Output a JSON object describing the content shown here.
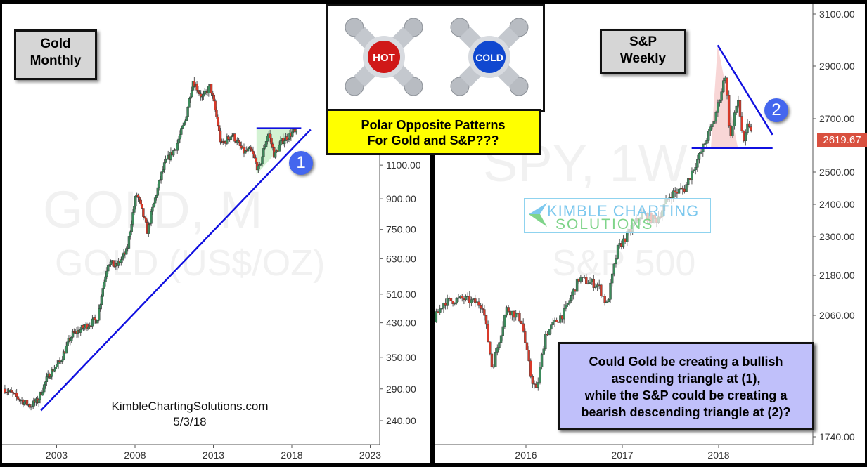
{
  "chart_data": [
    {
      "type": "candlestick",
      "title": "Gold Monthly",
      "watermark": [
        "GOLD, M",
        "GOLD (US$/OZ)"
      ],
      "y_scale": "log",
      "ylim": [
        220,
        2000
      ],
      "y_ticks": [
        "1100.00",
        "900.00",
        "750.00",
        "630.00",
        "510.00",
        "430.00",
        "350.00",
        "290.00",
        "240.00"
      ],
      "y_tick_values": [
        1100,
        900,
        750,
        630,
        510,
        430,
        350,
        290,
        240
      ],
      "x_ticks": [
        "2003",
        "2008",
        "2013",
        "2018",
        "2023"
      ],
      "x_tick_values": [
        2003,
        2008,
        2013,
        2018,
        2023
      ],
      "grid": false,
      "close_path": [
        [
          1999.7,
          290
        ],
        [
          2000.5,
          275
        ],
        [
          2001.3,
          262
        ],
        [
          2001.8,
          270
        ],
        [
          2002.5,
          315
        ],
        [
          2003.2,
          340
        ],
        [
          2004,
          400
        ],
        [
          2004.8,
          420
        ],
        [
          2005.6,
          440
        ],
        [
          2006.3,
          620
        ],
        [
          2006.8,
          600
        ],
        [
          2007.5,
          660
        ],
        [
          2008.1,
          930
        ],
        [
          2008.8,
          740
        ],
        [
          2009.4,
          940
        ],
        [
          2009.9,
          1110
        ],
        [
          2010.6,
          1220
        ],
        [
          2011.2,
          1430
        ],
        [
          2011.7,
          1820
        ],
        [
          2012.3,
          1640
        ],
        [
          2012.8,
          1760
        ],
        [
          2013.5,
          1240
        ],
        [
          2014.2,
          1320
        ],
        [
          2014.9,
          1190
        ],
        [
          2015.4,
          1200
        ],
        [
          2015.9,
          1060
        ],
        [
          2016.5,
          1340
        ],
        [
          2016.9,
          1160
        ],
        [
          2017.3,
          1260
        ],
        [
          2017.7,
          1300
        ],
        [
          2018.1,
          1340
        ],
        [
          2018.35,
          1310
        ]
      ],
      "annotations": {
        "ascending_triangle_label": "1",
        "resistance": 1360
      }
    },
    {
      "type": "candlestick",
      "title": "S&P Weekly",
      "watermark": [
        "SPY, 1W",
        "S&P 500"
      ],
      "last_price": "2619.67",
      "y_ticks": [
        "3100.00",
        "2900.00",
        "2700.00",
        "2500.00",
        "2400.00",
        "2300.00",
        "2180.00",
        "2060.00",
        "1740.00"
      ],
      "y_tick_values": [
        3100,
        2900,
        2700,
        2500,
        2400,
        2300,
        2180,
        2060,
        1740
      ],
      "x_ticks": [
        "2016",
        "2017",
        "2018"
      ],
      "x_tick_values": [
        2016,
        2017,
        2018
      ],
      "grid": false,
      "close_path": [
        [
          2015.03,
          2040
        ],
        [
          2015.15,
          2100
        ],
        [
          2015.35,
          2110
        ],
        [
          2015.55,
          2090
        ],
        [
          2015.65,
          1920
        ],
        [
          2015.8,
          2080
        ],
        [
          2015.95,
          2050
        ],
        [
          2016.05,
          1900
        ],
        [
          2016.11,
          1860
        ],
        [
          2016.2,
          2010
        ],
        [
          2016.4,
          2070
        ],
        [
          2016.55,
          2170
        ],
        [
          2016.75,
          2150
        ],
        [
          2016.84,
          2090
        ],
        [
          2016.95,
          2260
        ],
        [
          2017.2,
          2370
        ],
        [
          2017.35,
          2350
        ],
        [
          2017.5,
          2430
        ],
        [
          2017.65,
          2450
        ],
        [
          2017.8,
          2560
        ],
        [
          2017.95,
          2690
        ],
        [
          2018.07,
          2870
        ],
        [
          2018.12,
          2620
        ],
        [
          2018.2,
          2780
        ],
        [
          2018.26,
          2600
        ],
        [
          2018.31,
          2690
        ],
        [
          2018.35,
          2630
        ]
      ],
      "annotations": {
        "descending_triangle_label": "2",
        "support": 2590
      }
    }
  ],
  "colors": {
    "up": "#3d8b5c",
    "down": "#d93a2a",
    "trendline": "#1010e0",
    "badge": "#4466ee",
    "last_price_bg": "#d9503f",
    "note_bg": "#c0c0fa",
    "callout_bg": "#ffff00"
  },
  "gold_label": {
    "line1": "Gold",
    "line2": "Monthly"
  },
  "sp_label": {
    "line1": "S&P",
    "line2": "Weekly"
  },
  "site": {
    "name": "KimbleChartingSolutions.com",
    "date": "5/3/18"
  },
  "hotcold": {
    "hot": "HOT",
    "cold": "COLD"
  },
  "callout": {
    "line1": "Polar Opposite Patterns",
    "line2": "For Gold and S&P???"
  },
  "note": {
    "line1": "Could Gold be creating a bullish",
    "line2": "ascending triangle at (1),",
    "line3": "while the S&P could be creating a",
    "line4": "bearish descending triangle at (2)?"
  },
  "logo": {
    "line1": "KIMBLE CHARTING",
    "line2": "SOLUTIONS"
  }
}
